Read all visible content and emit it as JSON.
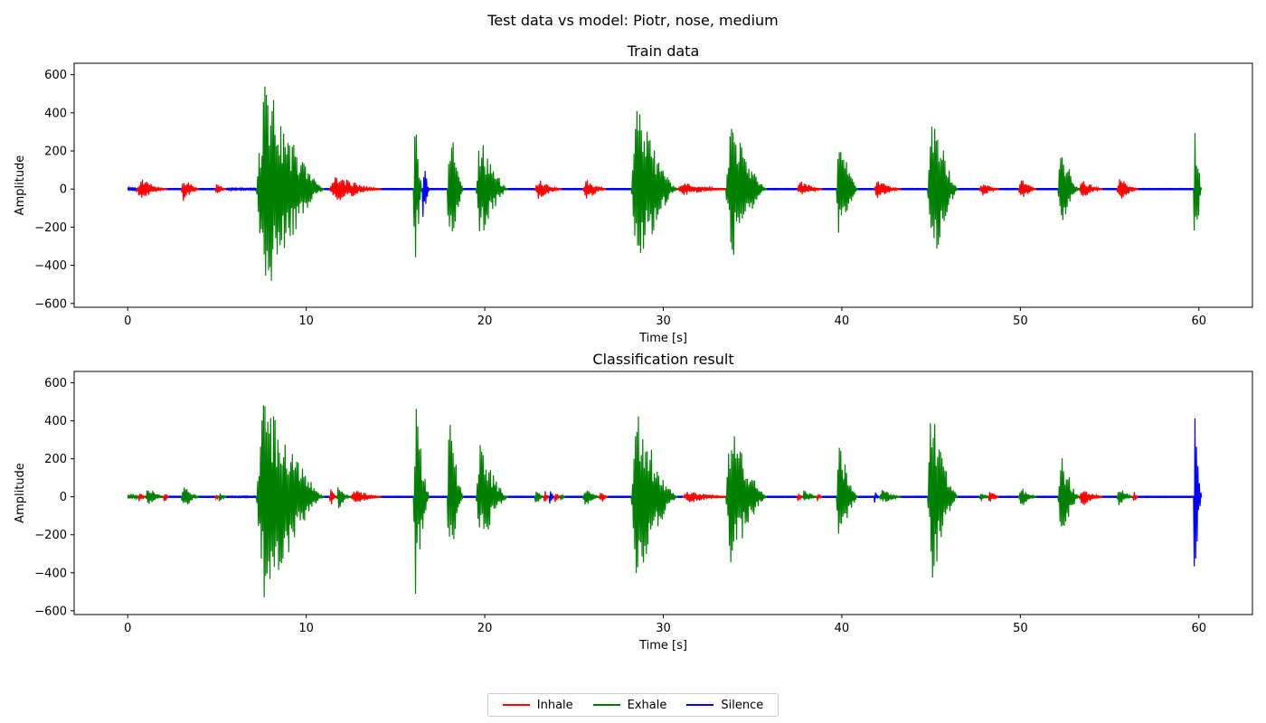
{
  "figure": {
    "suptitle": "Test data vs model: Piotr, nose, medium"
  },
  "legend": {
    "placement": "bottom-center",
    "items": [
      {
        "label": "Inhale",
        "color": "#ff0000"
      },
      {
        "label": "Exhale",
        "color": "#008000"
      },
      {
        "label": "Silence",
        "color": "#0000ff"
      }
    ]
  },
  "chart_data": [
    {
      "type": "line",
      "title": "Train data",
      "xlabel": "Time [s]",
      "ylabel": "Amplitude",
      "xlim": [
        -3,
        63
      ],
      "ylim": [
        -620,
        660
      ],
      "xticks": [
        0,
        10,
        20,
        30,
        40,
        50,
        60
      ],
      "yticks": [
        -600,
        -400,
        -200,
        0,
        200,
        400,
        600
      ],
      "grid": false,
      "series_colors": {
        "Inhale": "#ff0000",
        "Exhale": "#008000",
        "Silence": "#0000ff"
      },
      "segments": [
        {
          "label": "Silence",
          "start": 0.0,
          "end": 0.5,
          "amp": 10
        },
        {
          "label": "Inhale",
          "start": 0.5,
          "end": 2.2,
          "amp": 60
        },
        {
          "label": "Silence",
          "start": 2.2,
          "end": 3.0,
          "amp": 3
        },
        {
          "label": "Inhale",
          "start": 3.0,
          "end": 4.0,
          "amp": 65
        },
        {
          "label": "Silence",
          "start": 4.0,
          "end": 4.9,
          "amp": 3
        },
        {
          "label": "Inhale",
          "start": 4.9,
          "end": 5.5,
          "amp": 35
        },
        {
          "label": "Silence",
          "start": 5.5,
          "end": 7.2,
          "amp": 6
        },
        {
          "label": "Exhale",
          "start": 7.2,
          "end": 11.0,
          "amp": 600
        },
        {
          "label": "Silence",
          "start": 11.0,
          "end": 11.3,
          "amp": 3
        },
        {
          "label": "Inhale",
          "start": 11.3,
          "end": 14.2,
          "amp": 75
        },
        {
          "label": "Silence",
          "start": 14.2,
          "end": 16.0,
          "amp": 3
        },
        {
          "label": "Exhale",
          "start": 16.0,
          "end": 16.5,
          "amp": 550
        },
        {
          "label": "Silence",
          "start": 16.5,
          "end": 16.9,
          "amp": 180
        },
        {
          "label": "Silence",
          "start": 16.9,
          "end": 17.9,
          "amp": 3
        },
        {
          "label": "Exhale",
          "start": 17.9,
          "end": 18.8,
          "amp": 440
        },
        {
          "label": "Silence",
          "start": 18.8,
          "end": 19.5,
          "amp": 3
        },
        {
          "label": "Exhale",
          "start": 19.5,
          "end": 21.3,
          "amp": 290
        },
        {
          "label": "Silence",
          "start": 21.3,
          "end": 22.8,
          "amp": 3
        },
        {
          "label": "Inhale",
          "start": 22.8,
          "end": 24.3,
          "amp": 55
        },
        {
          "label": "Silence",
          "start": 24.3,
          "end": 25.5,
          "amp": 3
        },
        {
          "label": "Inhale",
          "start": 25.5,
          "end": 26.8,
          "amp": 60
        },
        {
          "label": "Silence",
          "start": 26.8,
          "end": 28.2,
          "amp": 3
        },
        {
          "label": "Exhale",
          "start": 28.2,
          "end": 30.8,
          "amp": 460
        },
        {
          "label": "Inhale",
          "start": 30.8,
          "end": 33.5,
          "amp": 35
        },
        {
          "label": "Exhale",
          "start": 33.5,
          "end": 35.8,
          "amp": 400
        },
        {
          "label": "Silence",
          "start": 35.8,
          "end": 37.5,
          "amp": 3
        },
        {
          "label": "Inhale",
          "start": 37.5,
          "end": 38.9,
          "amp": 45
        },
        {
          "label": "Silence",
          "start": 38.9,
          "end": 39.7,
          "amp": 3
        },
        {
          "label": "Exhale",
          "start": 39.7,
          "end": 40.9,
          "amp": 290
        },
        {
          "label": "Silence",
          "start": 40.9,
          "end": 41.8,
          "amp": 3
        },
        {
          "label": "Inhale",
          "start": 41.8,
          "end": 43.3,
          "amp": 50
        },
        {
          "label": "Silence",
          "start": 43.3,
          "end": 44.8,
          "amp": 3
        },
        {
          "label": "Exhale",
          "start": 44.8,
          "end": 46.5,
          "amp": 490
        },
        {
          "label": "Silence",
          "start": 46.5,
          "end": 47.7,
          "amp": 3
        },
        {
          "label": "Inhale",
          "start": 47.7,
          "end": 48.8,
          "amp": 40
        },
        {
          "label": "Silence",
          "start": 48.8,
          "end": 49.9,
          "amp": 3
        },
        {
          "label": "Inhale",
          "start": 49.9,
          "end": 50.9,
          "amp": 60
        },
        {
          "label": "Silence",
          "start": 50.9,
          "end": 52.1,
          "amp": 3
        },
        {
          "label": "Exhale",
          "start": 52.1,
          "end": 53.3,
          "amp": 250
        },
        {
          "label": "Inhale",
          "start": 53.3,
          "end": 54.6,
          "amp": 55
        },
        {
          "label": "Silence",
          "start": 54.6,
          "end": 55.4,
          "amp": 3
        },
        {
          "label": "Inhale",
          "start": 55.4,
          "end": 56.6,
          "amp": 65
        },
        {
          "label": "Silence",
          "start": 56.6,
          "end": 59.7,
          "amp": 3
        },
        {
          "label": "Exhale",
          "start": 59.7,
          "end": 60.15,
          "amp": 540
        }
      ]
    },
    {
      "type": "line",
      "title": "Classification result",
      "xlabel": "Time [s]",
      "ylabel": "Amplitude",
      "xlim": [
        -3,
        63
      ],
      "ylim": [
        -620,
        660
      ],
      "xticks": [
        0,
        10,
        20,
        30,
        40,
        50,
        60
      ],
      "yticks": [
        -600,
        -400,
        -200,
        0,
        200,
        400,
        600
      ],
      "grid": false,
      "series_colors": {
        "Inhale": "#ff0000",
        "Exhale": "#008000",
        "Silence": "#0000ff"
      },
      "segments": [
        {
          "label": "Exhale",
          "start": 0.0,
          "end": 0.6,
          "amp": 10
        },
        {
          "label": "Inhale",
          "start": 0.6,
          "end": 1.0,
          "amp": 30
        },
        {
          "label": "Exhale",
          "start": 1.0,
          "end": 2.0,
          "amp": 55
        },
        {
          "label": "Inhale",
          "start": 2.0,
          "end": 2.3,
          "amp": 40
        },
        {
          "label": "Silence",
          "start": 2.3,
          "end": 3.0,
          "amp": 3
        },
        {
          "label": "Exhale",
          "start": 3.0,
          "end": 4.0,
          "amp": 65
        },
        {
          "label": "Silence",
          "start": 4.0,
          "end": 4.9,
          "amp": 3
        },
        {
          "label": "Inhale",
          "start": 4.9,
          "end": 5.1,
          "amp": 30
        },
        {
          "label": "Exhale",
          "start": 5.1,
          "end": 5.5,
          "amp": 40
        },
        {
          "label": "Silence",
          "start": 5.5,
          "end": 7.2,
          "amp": 4
        },
        {
          "label": "Exhale",
          "start": 7.2,
          "end": 11.0,
          "amp": 600
        },
        {
          "label": "Silence",
          "start": 11.0,
          "end": 11.3,
          "amp": 3
        },
        {
          "label": "Inhale",
          "start": 11.3,
          "end": 11.7,
          "amp": 60
        },
        {
          "label": "Exhale",
          "start": 11.7,
          "end": 12.5,
          "amp": 70
        },
        {
          "label": "Inhale",
          "start": 12.5,
          "end": 14.2,
          "amp": 40
        },
        {
          "label": "Silence",
          "start": 14.2,
          "end": 16.0,
          "amp": 3
        },
        {
          "label": "Exhale",
          "start": 16.0,
          "end": 16.9,
          "amp": 550
        },
        {
          "label": "Silence",
          "start": 16.9,
          "end": 17.9,
          "amp": 3
        },
        {
          "label": "Exhale",
          "start": 17.9,
          "end": 18.8,
          "amp": 440
        },
        {
          "label": "Silence",
          "start": 18.8,
          "end": 19.5,
          "amp": 3
        },
        {
          "label": "Exhale",
          "start": 19.5,
          "end": 21.3,
          "amp": 290
        },
        {
          "label": "Silence",
          "start": 21.3,
          "end": 22.8,
          "amp": 3
        },
        {
          "label": "Exhale",
          "start": 22.8,
          "end": 23.3,
          "amp": 45
        },
        {
          "label": "Inhale",
          "start": 23.3,
          "end": 23.6,
          "amp": 45
        },
        {
          "label": "Silence",
          "start": 23.6,
          "end": 23.9,
          "amp": 45
        },
        {
          "label": "Inhale",
          "start": 23.9,
          "end": 24.2,
          "amp": 40
        },
        {
          "label": "Exhale",
          "start": 24.2,
          "end": 24.5,
          "amp": 30
        },
        {
          "label": "Silence",
          "start": 24.5,
          "end": 25.5,
          "amp": 3
        },
        {
          "label": "Exhale",
          "start": 25.5,
          "end": 26.4,
          "amp": 55
        },
        {
          "label": "Inhale",
          "start": 26.4,
          "end": 26.9,
          "amp": 45
        },
        {
          "label": "Silence",
          "start": 26.9,
          "end": 28.2,
          "amp": 3
        },
        {
          "label": "Exhale",
          "start": 28.2,
          "end": 30.8,
          "amp": 460
        },
        {
          "label": "Silence",
          "start": 30.8,
          "end": 31.1,
          "amp": 3
        },
        {
          "label": "Inhale",
          "start": 31.1,
          "end": 33.5,
          "amp": 35
        },
        {
          "label": "Exhale",
          "start": 33.5,
          "end": 35.8,
          "amp": 400
        },
        {
          "label": "Silence",
          "start": 35.8,
          "end": 37.5,
          "amp": 3
        },
        {
          "label": "Inhale",
          "start": 37.5,
          "end": 37.8,
          "amp": 40
        },
        {
          "label": "Exhale",
          "start": 37.8,
          "end": 38.6,
          "amp": 45
        },
        {
          "label": "Inhale",
          "start": 38.6,
          "end": 38.9,
          "amp": 35
        },
        {
          "label": "Silence",
          "start": 38.9,
          "end": 39.7,
          "amp": 3
        },
        {
          "label": "Exhale",
          "start": 39.7,
          "end": 40.9,
          "amp": 290
        },
        {
          "label": "Silence",
          "start": 40.9,
          "end": 41.8,
          "amp": 3
        },
        {
          "label": "Silence",
          "start": 41.8,
          "end": 42.1,
          "amp": 35
        },
        {
          "label": "Exhale",
          "start": 42.1,
          "end": 43.3,
          "amp": 45
        },
        {
          "label": "Silence",
          "start": 43.3,
          "end": 44.8,
          "amp": 3
        },
        {
          "label": "Exhale",
          "start": 44.8,
          "end": 46.5,
          "amp": 490
        },
        {
          "label": "Silence",
          "start": 46.5,
          "end": 47.7,
          "amp": 3
        },
        {
          "label": "Exhale",
          "start": 47.7,
          "end": 48.2,
          "amp": 40
        },
        {
          "label": "Inhale",
          "start": 48.2,
          "end": 48.8,
          "amp": 40
        },
        {
          "label": "Silence",
          "start": 48.8,
          "end": 49.9,
          "amp": 3
        },
        {
          "label": "Exhale",
          "start": 49.9,
          "end": 50.9,
          "amp": 60
        },
        {
          "label": "Silence",
          "start": 50.9,
          "end": 52.1,
          "amp": 3
        },
        {
          "label": "Exhale",
          "start": 52.1,
          "end": 53.3,
          "amp": 250
        },
        {
          "label": "Inhale",
          "start": 53.3,
          "end": 54.6,
          "amp": 55
        },
        {
          "label": "Silence",
          "start": 54.6,
          "end": 55.4,
          "amp": 3
        },
        {
          "label": "Exhale",
          "start": 55.4,
          "end": 56.3,
          "amp": 60
        },
        {
          "label": "Inhale",
          "start": 56.3,
          "end": 56.6,
          "amp": 35
        },
        {
          "label": "Silence",
          "start": 56.6,
          "end": 59.7,
          "amp": 3
        },
        {
          "label": "Silence",
          "start": 59.7,
          "end": 60.15,
          "amp": 540
        }
      ]
    }
  ]
}
